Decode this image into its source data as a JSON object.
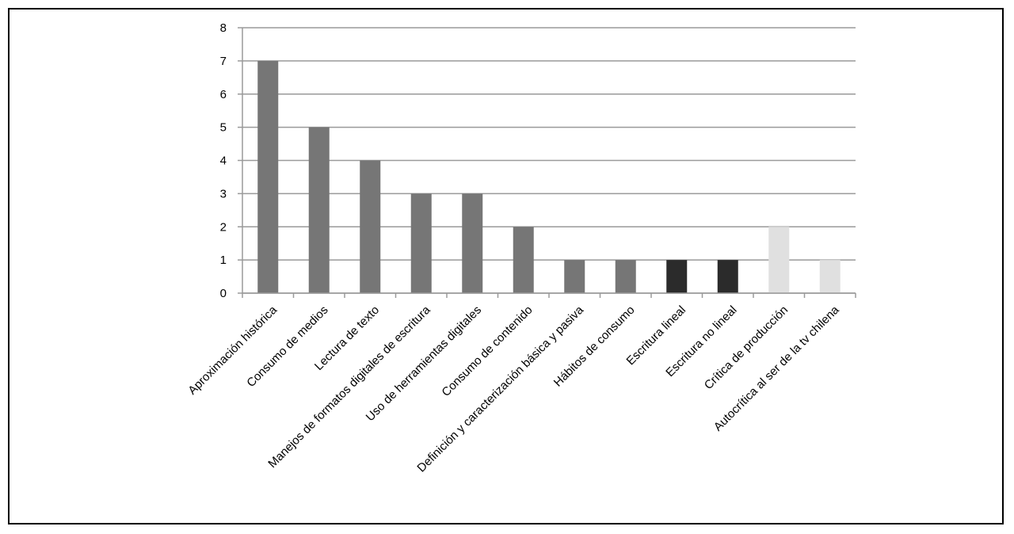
{
  "chart_data": {
    "type": "bar",
    "title": "",
    "xlabel": "",
    "ylabel": "",
    "ylim": [
      0,
      8
    ],
    "yticks": [
      0,
      1,
      2,
      3,
      4,
      5,
      6,
      7,
      8
    ],
    "grid": true,
    "legend": "none",
    "categories": [
      "Aproximación histórica",
      "Consumo de medios",
      "Lectura de texto",
      "Manejos de formatos digitales de escritura",
      "Uso de herramientas digitales",
      "Consumo de contenido",
      "Definición y caracterización básica y pasiva",
      "Hábitos de consumo",
      "Escritura lineal",
      "Escritura no lineal",
      "Crítica de producción",
      "Autocrítica al ser de la tv chilena"
    ],
    "values": [
      7,
      5,
      4,
      3,
      3,
      2,
      1,
      1,
      1,
      1,
      2,
      1
    ],
    "bar_colors": [
      "#767676",
      "#767676",
      "#767676",
      "#767676",
      "#767676",
      "#767676",
      "#767676",
      "#767676",
      "#2b2b2b",
      "#2b2b2b",
      "#e0e0e0",
      "#e0e0e0"
    ],
    "grid_color": "#9a9a9a",
    "axis_color": "#9a9a9a"
  }
}
